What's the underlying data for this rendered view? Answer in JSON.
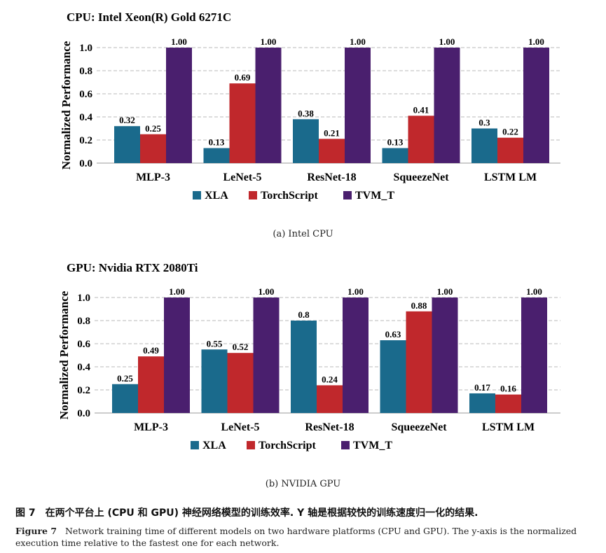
{
  "colors": {
    "XLA": "#1a6a8c",
    "TorchScript": "#c0282c",
    "TVM_T": "#4a1f6e",
    "grid": "#b8b8b8"
  },
  "chart_data": [
    {
      "type": "bar",
      "title": "CPU: Intel Xeon(R) Gold 6271C",
      "subcaption": "(a) Intel CPU",
      "ylabel": "Normalized Performance",
      "xlabel": "",
      "ylim": [
        0,
        1.0
      ],
      "yticks": [
        "0.0",
        "0.2",
        "0.4",
        "0.6",
        "0.8",
        "1.0"
      ],
      "grid": true,
      "legend": "bottom",
      "categories": [
        "MLP-3",
        "LeNet-5",
        "ResNet-18",
        "SqueezeNet",
        "LSTM LM"
      ],
      "series": [
        {
          "name": "XLA",
          "values": [
            0.32,
            0.13,
            0.38,
            0.13,
            0.3
          ],
          "labels": [
            "0.32",
            "0.13",
            "0.38",
            "0.13",
            "0.3"
          ]
        },
        {
          "name": "TorchScript",
          "values": [
            0.25,
            0.69,
            0.21,
            0.41,
            0.22
          ],
          "labels": [
            "0.25",
            "0.69",
            "0.21",
            "0.41",
            "0.22"
          ]
        },
        {
          "name": "TVM_T",
          "values": [
            1.0,
            1.0,
            1.0,
            1.0,
            1.0
          ],
          "labels": [
            "1.00",
            "1.00",
            "1.00",
            "1.00",
            "1.00"
          ]
        }
      ]
    },
    {
      "type": "bar",
      "title": "GPU: Nvidia RTX 2080Ti",
      "subcaption": "(b) NVIDIA GPU",
      "ylabel": "Normalized Performance",
      "xlabel": "",
      "ylim": [
        0,
        1.0
      ],
      "yticks": [
        "0.0",
        "0.2",
        "0.4",
        "0.6",
        "0.8",
        "1.0"
      ],
      "grid": true,
      "legend": "bottom",
      "categories": [
        "MLP-3",
        "LeNet-5",
        "ResNet-18",
        "SqueezeNet",
        "LSTM LM"
      ],
      "series": [
        {
          "name": "XLA",
          "values": [
            0.25,
            0.55,
            0.8,
            0.63,
            0.17
          ],
          "labels": [
            "0.25",
            "0.55",
            "0.8",
            "0.63",
            "0.17"
          ]
        },
        {
          "name": "TorchScript",
          "values": [
            0.49,
            0.52,
            0.24,
            0.88,
            0.16
          ],
          "labels": [
            "0.49",
            "0.52",
            "0.24",
            "0.88",
            "0.16"
          ]
        },
        {
          "name": "TVM_T",
          "values": [
            1.0,
            1.0,
            1.0,
            1.0,
            1.0
          ],
          "labels": [
            "1.00",
            "1.00",
            "1.00",
            "1.00",
            "1.00"
          ]
        }
      ]
    }
  ],
  "caption": {
    "zh": "图 7　在两个平台上 (CPU 和 GPU) 神经网络模型的训练效率. Y 轴是根据较快的训练速度归一化的结果.",
    "en_label": "Figure 7",
    "en_text": "Network training time of different models on two hardware platforms (CPU and GPU). The y-axis is the normalized execution time relative to the fastest one for each network."
  }
}
